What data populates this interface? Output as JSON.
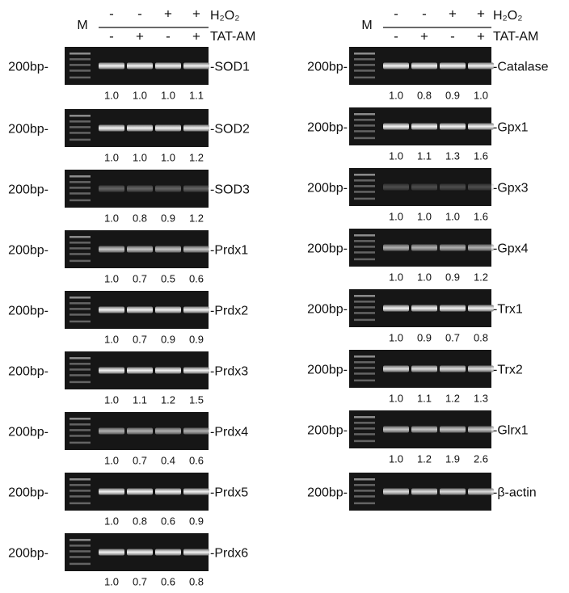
{
  "columns": [
    {
      "header": {
        "marker": "M",
        "rows": [
          {
            "label": "H₂O₂",
            "signs": [
              "-",
              "-",
              "+",
              "+"
            ]
          },
          {
            "label": "TAT-AM",
            "signs": [
              "-",
              "+",
              "-",
              "+"
            ]
          }
        ]
      },
      "panels": [
        {
          "marker_label": "200bp-",
          "name": "-SOD1",
          "values": [
            "1.0",
            "1.0",
            "1.0",
            "1.1"
          ]
        },
        {
          "marker_label": "200bp-",
          "name": "-SOD2",
          "values": [
            "1.0",
            "1.0",
            "1.0",
            "1.2"
          ]
        },
        {
          "marker_label": "200bp-",
          "name": "-SOD3",
          "values": [
            "1.0",
            "0.8",
            "0.9",
            "1.2"
          ]
        },
        {
          "marker_label": "200bp-",
          "name": "-Prdx1",
          "values": [
            "1.0",
            "0.7",
            "0.5",
            "0.6"
          ]
        },
        {
          "marker_label": "200bp-",
          "name": "-Prdx2",
          "values": [
            "1.0",
            "0.7",
            "0.9",
            "0.9"
          ]
        },
        {
          "marker_label": "200bp-",
          "name": "-Prdx3",
          "values": [
            "1.0",
            "1.1",
            "1.2",
            "1.5"
          ]
        },
        {
          "marker_label": "200bp-",
          "name": "-Prdx4",
          "values": [
            "1.0",
            "0.7",
            "0.4",
            "0.6"
          ]
        },
        {
          "marker_label": "200bp-",
          "name": "-Prdx5",
          "values": [
            "1.0",
            "0.8",
            "0.6",
            "0.9"
          ]
        },
        {
          "marker_label": "200bp-",
          "name": "-Prdx6",
          "values": [
            "1.0",
            "0.7",
            "0.6",
            "0.8"
          ]
        }
      ]
    },
    {
      "header": {
        "marker": "M",
        "rows": [
          {
            "label": "H₂O₂",
            "signs": [
              "-",
              "-",
              "+",
              "+"
            ]
          },
          {
            "label": "TAT-AM",
            "signs": [
              "-",
              "+",
              "-",
              "+"
            ]
          }
        ]
      },
      "panels": [
        {
          "marker_label": "200bp-",
          "name": "-Catalase",
          "values": [
            "1.0",
            "0.8",
            "0.9",
            "1.0"
          ]
        },
        {
          "marker_label": "200bp-",
          "name": "-Gpx1",
          "values": [
            "1.0",
            "1.1",
            "1.3",
            "1.6"
          ]
        },
        {
          "marker_label": "200bp-",
          "name": "-Gpx3",
          "values": [
            "1.0",
            "1.0",
            "1.0",
            "1.6"
          ]
        },
        {
          "marker_label": "200bp-",
          "name": "-Gpx4",
          "values": [
            "1.0",
            "1.0",
            "0.9",
            "1.2"
          ]
        },
        {
          "marker_label": "200bp-",
          "name": "-Trx1",
          "values": [
            "1.0",
            "0.9",
            "0.7",
            "0.8"
          ]
        },
        {
          "marker_label": "200bp-",
          "name": "-Trx2",
          "values": [
            "1.0",
            "1.1",
            "1.2",
            "1.3"
          ]
        },
        {
          "marker_label": "200bp-",
          "name": "-Glrx1",
          "values": [
            "1.0",
            "1.2",
            "1.9",
            "2.6"
          ]
        },
        {
          "marker_label": "200bp-",
          "name": "-β-actin"
        }
      ]
    }
  ]
}
